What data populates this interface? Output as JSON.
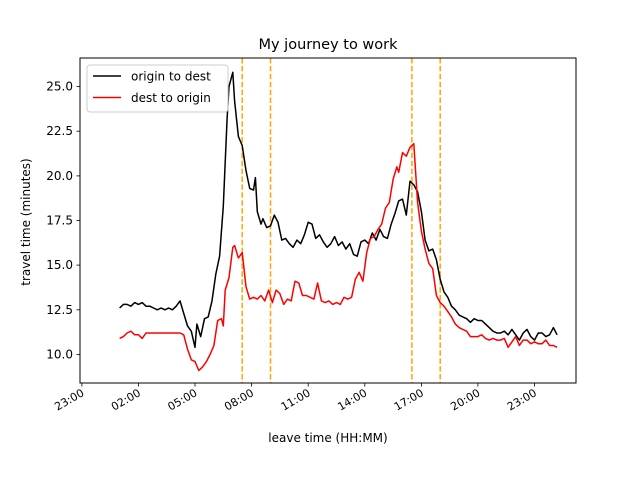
{
  "chart_data": {
    "type": "line",
    "title": "My journey to work",
    "xlabel": "leave time (HH:MM)",
    "ylabel": "travel time (minutes)",
    "x_unit": "hours from 00:00",
    "xlim": [
      -1.1,
      25.2
    ],
    "ylim": [
      8.4,
      26.6
    ],
    "x_ticks": [
      {
        "value": -1,
        "label": "23:00"
      },
      {
        "value": 2,
        "label": "02:00"
      },
      {
        "value": 5,
        "label": "05:00"
      },
      {
        "value": 8,
        "label": "08:00"
      },
      {
        "value": 11,
        "label": "11:00"
      },
      {
        "value": 14,
        "label": "14:00"
      },
      {
        "value": 17,
        "label": "17:00"
      },
      {
        "value": 20,
        "label": "20:00"
      },
      {
        "value": 23,
        "label": "23:00"
      }
    ],
    "y_ticks": [
      {
        "value": 10,
        "label": "10.0"
      },
      {
        "value": 12.5,
        "label": "12.5"
      },
      {
        "value": 15,
        "label": "15.0"
      },
      {
        "value": 17.5,
        "label": "17.5"
      },
      {
        "value": 20,
        "label": "20.0"
      },
      {
        "value": 22.5,
        "label": "22.5"
      },
      {
        "value": 25,
        "label": "25.0"
      }
    ],
    "vlines": [
      {
        "x": 7.5,
        "color": "#FFA500",
        "style": "dashed"
      },
      {
        "x": 9.0,
        "color": "#FFA500",
        "style": "dashed"
      },
      {
        "x": 16.5,
        "color": "#FFA500",
        "style": "dashed"
      },
      {
        "x": 18.0,
        "color": "#FFA500",
        "style": "dashed"
      }
    ],
    "legend_position": "upper-left",
    "grid": false,
    "series": [
      {
        "name": "origin to dest",
        "color": "#000000",
        "points": [
          [
            1,
            12.6
          ],
          [
            1.2,
            12.8
          ],
          [
            1.4,
            12.8
          ],
          [
            1.6,
            12.7
          ],
          [
            1.8,
            12.9
          ],
          [
            2,
            12.8
          ],
          [
            2.2,
            12.9
          ],
          [
            2.4,
            12.7
          ],
          [
            2.6,
            12.7
          ],
          [
            2.8,
            12.6
          ],
          [
            3,
            12.5
          ],
          [
            3.2,
            12.6
          ],
          [
            3.4,
            12.5
          ],
          [
            3.6,
            12.6
          ],
          [
            3.8,
            12.5
          ],
          [
            4,
            12.7
          ],
          [
            4.2,
            13.0
          ],
          [
            4.4,
            12.3
          ],
          [
            4.6,
            11.6
          ],
          [
            4.8,
            11.3
          ],
          [
            5,
            10.4
          ],
          [
            5.1,
            11.7
          ],
          [
            5.3,
            11.0
          ],
          [
            5.5,
            12.0
          ],
          [
            5.7,
            12.1
          ],
          [
            5.9,
            13.0
          ],
          [
            6.1,
            14.5
          ],
          [
            6.3,
            15.5
          ],
          [
            6.5,
            18.3
          ],
          [
            6.7,
            23.2
          ],
          [
            6.8,
            25.0
          ],
          [
            7.0,
            25.8
          ],
          [
            7.1,
            24.2
          ],
          [
            7.3,
            22.2
          ],
          [
            7.5,
            21.7
          ],
          [
            7.7,
            20.3
          ],
          [
            7.9,
            19.3
          ],
          [
            8.1,
            19.2
          ],
          [
            8.2,
            19.9
          ],
          [
            8.3,
            18.0
          ],
          [
            8.5,
            17.3
          ],
          [
            8.6,
            17.6
          ],
          [
            8.8,
            17.1
          ],
          [
            9.0,
            17.2
          ],
          [
            9.2,
            17.8
          ],
          [
            9.4,
            17.4
          ],
          [
            9.6,
            16.4
          ],
          [
            9.8,
            16.5
          ],
          [
            10.0,
            16.2
          ],
          [
            10.2,
            16.0
          ],
          [
            10.4,
            16.4
          ],
          [
            10.6,
            16.2
          ],
          [
            10.8,
            16.7
          ],
          [
            11.0,
            17.4
          ],
          [
            11.2,
            17.3
          ],
          [
            11.4,
            16.5
          ],
          [
            11.6,
            16.7
          ],
          [
            11.8,
            16.3
          ],
          [
            12.0,
            16.0
          ],
          [
            12.2,
            16.2
          ],
          [
            12.4,
            16.6
          ],
          [
            12.6,
            16.1
          ],
          [
            12.8,
            16.3
          ],
          [
            13.0,
            15.9
          ],
          [
            13.2,
            16.2
          ],
          [
            13.4,
            15.6
          ],
          [
            13.6,
            15.5
          ],
          [
            13.8,
            16.3
          ],
          [
            14.0,
            16.4
          ],
          [
            14.2,
            16.2
          ],
          [
            14.4,
            16.8
          ],
          [
            14.6,
            16.4
          ],
          [
            14.8,
            17.0
          ],
          [
            15.0,
            16.6
          ],
          [
            15.2,
            16.5
          ],
          [
            15.4,
            17.3
          ],
          [
            15.6,
            17.9
          ],
          [
            15.8,
            18.6
          ],
          [
            16.0,
            18.7
          ],
          [
            16.2,
            17.8
          ],
          [
            16.4,
            19.7
          ],
          [
            16.6,
            19.5
          ],
          [
            16.8,
            19.1
          ],
          [
            17.0,
            18.0
          ],
          [
            17.2,
            16.4
          ],
          [
            17.4,
            15.8
          ],
          [
            17.6,
            15.9
          ],
          [
            17.8,
            15.3
          ],
          [
            18.0,
            14.2
          ],
          [
            18.2,
            13.5
          ],
          [
            18.4,
            13.2
          ],
          [
            18.6,
            12.7
          ],
          [
            18.8,
            12.5
          ],
          [
            19.0,
            12.2
          ],
          [
            19.2,
            12.1
          ],
          [
            19.4,
            12.0
          ],
          [
            19.6,
            11.8
          ],
          [
            19.8,
            12.0
          ],
          [
            20.0,
            11.9
          ],
          [
            20.2,
            11.9
          ],
          [
            20.4,
            11.7
          ],
          [
            20.6,
            11.5
          ],
          [
            20.8,
            11.3
          ],
          [
            21.0,
            11.2
          ],
          [
            21.2,
            11.2
          ],
          [
            21.4,
            11.3
          ],
          [
            21.6,
            11.1
          ],
          [
            21.8,
            11.4
          ],
          [
            22.0,
            11.1
          ],
          [
            22.2,
            10.8
          ],
          [
            22.4,
            11.2
          ],
          [
            22.6,
            11.4
          ],
          [
            22.8,
            11.0
          ],
          [
            23.0,
            10.8
          ],
          [
            23.2,
            11.2
          ],
          [
            23.4,
            11.2
          ],
          [
            23.6,
            11.0
          ],
          [
            23.8,
            11.1
          ],
          [
            24.0,
            11.5
          ],
          [
            24.2,
            11.1
          ]
        ]
      },
      {
        "name": "dest to origin",
        "color": "#FF0000",
        "points": [
          [
            1,
            10.9
          ],
          [
            1.2,
            11.0
          ],
          [
            1.4,
            11.2
          ],
          [
            1.6,
            11.3
          ],
          [
            1.8,
            11.1
          ],
          [
            2,
            11.1
          ],
          [
            2.2,
            10.9
          ],
          [
            2.4,
            11.2
          ],
          [
            2.6,
            11.2
          ],
          [
            2.8,
            11.2
          ],
          [
            3,
            11.2
          ],
          [
            3.2,
            11.2
          ],
          [
            3.4,
            11.2
          ],
          [
            3.6,
            11.2
          ],
          [
            3.8,
            11.2
          ],
          [
            4,
            11.2
          ],
          [
            4.2,
            11.2
          ],
          [
            4.4,
            11.1
          ],
          [
            4.6,
            10.3
          ],
          [
            4.8,
            9.7
          ],
          [
            5,
            9.6
          ],
          [
            5.2,
            9.1
          ],
          [
            5.4,
            9.3
          ],
          [
            5.6,
            9.6
          ],
          [
            5.8,
            10.0
          ],
          [
            6.0,
            10.5
          ],
          [
            6.2,
            11.9
          ],
          [
            6.4,
            12.0
          ],
          [
            6.5,
            11.6
          ],
          [
            6.6,
            13.6
          ],
          [
            6.8,
            14.3
          ],
          [
            7.0,
            16.0
          ],
          [
            7.1,
            16.1
          ],
          [
            7.3,
            15.4
          ],
          [
            7.5,
            15.7
          ],
          [
            7.7,
            13.8
          ],
          [
            7.9,
            13.1
          ],
          [
            8.1,
            13.2
          ],
          [
            8.3,
            13.1
          ],
          [
            8.5,
            13.3
          ],
          [
            8.7,
            13.0
          ],
          [
            8.9,
            13.6
          ],
          [
            9.1,
            12.9
          ],
          [
            9.3,
            13.6
          ],
          [
            9.5,
            13.4
          ],
          [
            9.7,
            12.8
          ],
          [
            9.9,
            13.1
          ],
          [
            10.1,
            13.0
          ],
          [
            10.3,
            14.1
          ],
          [
            10.5,
            14.0
          ],
          [
            10.7,
            13.3
          ],
          [
            10.9,
            13.3
          ],
          [
            11.1,
            13.2
          ],
          [
            11.3,
            13.1
          ],
          [
            11.5,
            14.0
          ],
          [
            11.7,
            13.0
          ],
          [
            11.9,
            12.9
          ],
          [
            12.1,
            13.0
          ],
          [
            12.3,
            12.8
          ],
          [
            12.5,
            12.9
          ],
          [
            12.7,
            12.8
          ],
          [
            12.9,
            13.2
          ],
          [
            13.1,
            13.1
          ],
          [
            13.3,
            13.2
          ],
          [
            13.5,
            14.2
          ],
          [
            13.7,
            14.6
          ],
          [
            13.9,
            14.1
          ],
          [
            14.1,
            15.7
          ],
          [
            14.3,
            16.5
          ],
          [
            14.5,
            16.6
          ],
          [
            14.7,
            17.0
          ],
          [
            14.9,
            17.3
          ],
          [
            15.1,
            18.2
          ],
          [
            15.3,
            18.5
          ],
          [
            15.5,
            19.8
          ],
          [
            15.7,
            20.5
          ],
          [
            15.8,
            20.2
          ],
          [
            16.0,
            21.3
          ],
          [
            16.2,
            21.1
          ],
          [
            16.4,
            21.6
          ],
          [
            16.6,
            21.8
          ],
          [
            16.8,
            18.5
          ],
          [
            17.0,
            16.9
          ],
          [
            17.2,
            15.9
          ],
          [
            17.4,
            15.1
          ],
          [
            17.6,
            14.8
          ],
          [
            17.8,
            13.3
          ],
          [
            18.0,
            12.9
          ],
          [
            18.2,
            12.7
          ],
          [
            18.4,
            12.4
          ],
          [
            18.6,
            12.1
          ],
          [
            18.8,
            11.7
          ],
          [
            19.0,
            11.5
          ],
          [
            19.2,
            11.4
          ],
          [
            19.4,
            11.3
          ],
          [
            19.6,
            11.0
          ],
          [
            19.8,
            11.0
          ],
          [
            20.0,
            11.0
          ],
          [
            20.2,
            11.1
          ],
          [
            20.4,
            10.9
          ],
          [
            20.6,
            10.8
          ],
          [
            20.8,
            10.9
          ],
          [
            21.0,
            10.8
          ],
          [
            21.2,
            10.8
          ],
          [
            21.4,
            10.9
          ],
          [
            21.6,
            10.4
          ],
          [
            21.8,
            10.7
          ],
          [
            22.0,
            11.0
          ],
          [
            22.2,
            10.5
          ],
          [
            22.4,
            10.8
          ],
          [
            22.6,
            10.8
          ],
          [
            22.8,
            10.6
          ],
          [
            23.0,
            10.7
          ],
          [
            23.2,
            10.6
          ],
          [
            23.4,
            10.6
          ],
          [
            23.6,
            10.8
          ],
          [
            23.8,
            10.5
          ],
          [
            24.0,
            10.5
          ],
          [
            24.2,
            10.4
          ]
        ]
      }
    ]
  }
}
